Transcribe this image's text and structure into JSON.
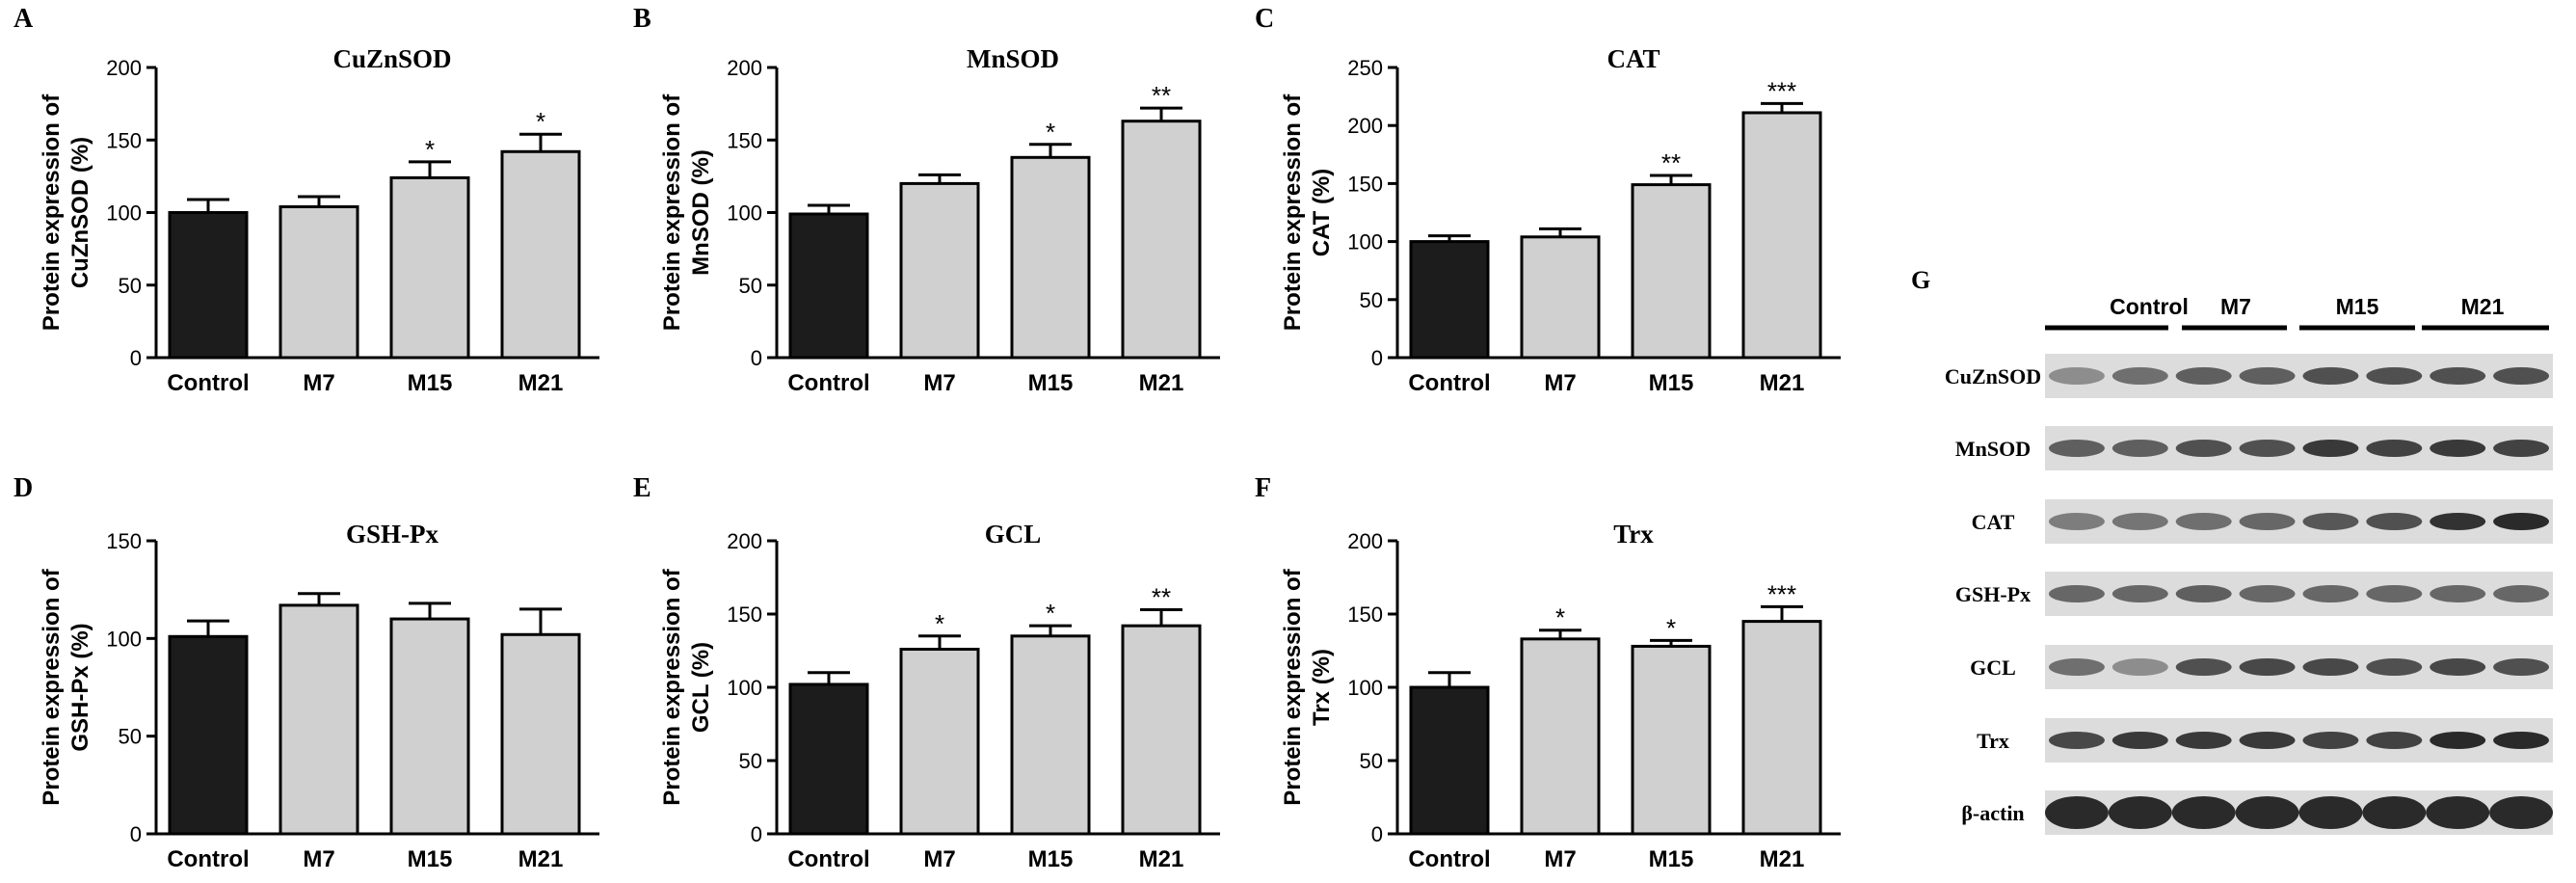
{
  "colors": {
    "control_bar": "#1c1c1c",
    "treated_bar": "#d0d0d0",
    "axis": "#000000",
    "blot_background": "#dcdcdc",
    "band": "#2a2a2a"
  },
  "chart_data": [
    {
      "panel": "A",
      "type": "bar",
      "title": "CuZnSOD",
      "ylabel": "Protein expression of CuZnSOD (%)",
      "ylabel_lines": [
        "Protein expression of",
        "CuZnSOD (%)"
      ],
      "categories": [
        "Control",
        "M7",
        "M15",
        "M21"
      ],
      "values": [
        100,
        104,
        124,
        142
      ],
      "errors": [
        9,
        7,
        11,
        12
      ],
      "significance": [
        "",
        "",
        "*",
        "*"
      ],
      "ylim": [
        0,
        200
      ],
      "yticks": [
        "0",
        "50",
        "100",
        "150",
        "200"
      ]
    },
    {
      "panel": "B",
      "type": "bar",
      "title": "MnSOD",
      "ylabel": "Protein expression of MnSOD (%)",
      "ylabel_lines": [
        "Protein expression of",
        "MnSOD (%)"
      ],
      "categories": [
        "Control",
        "M7",
        "M15",
        "M21"
      ],
      "values": [
        99,
        120,
        138,
        163
      ],
      "errors": [
        6,
        6,
        9,
        9
      ],
      "significance": [
        "",
        "",
        "*",
        "**"
      ],
      "ylim": [
        0,
        200
      ],
      "yticks": [
        "0",
        "50",
        "100",
        "150",
        "200"
      ]
    },
    {
      "panel": "C",
      "type": "bar",
      "title": "CAT",
      "ylabel": "Protein expression of CAT (%)",
      "ylabel_lines": [
        "Protein expression of",
        "CAT (%)"
      ],
      "categories": [
        "Control",
        "M7",
        "M15",
        "M21"
      ],
      "values": [
        100,
        104,
        149,
        211
      ],
      "errors": [
        5,
        7,
        8,
        8
      ],
      "significance": [
        "",
        "",
        "**",
        "***"
      ],
      "ylim": [
        0,
        250
      ],
      "yticks": [
        "0",
        "50",
        "100",
        "150",
        "200",
        "250"
      ]
    },
    {
      "panel": "D",
      "type": "bar",
      "title": "GSH-Px",
      "ylabel": "Protein expression of GSH-Px (%)",
      "ylabel_lines": [
        "Protein expression of",
        "GSH-Px (%)"
      ],
      "categories": [
        "Control",
        "M7",
        "M15",
        "M21"
      ],
      "values": [
        101,
        117,
        110,
        102
      ],
      "errors": [
        8,
        6,
        8,
        13
      ],
      "significance": [
        "",
        "",
        "",
        ""
      ],
      "ylim": [
        0,
        150
      ],
      "yticks": [
        "0",
        "50",
        "100",
        "150"
      ]
    },
    {
      "panel": "E",
      "type": "bar",
      "title": "GCL",
      "ylabel": "Protein expression of GCL (%)",
      "ylabel_lines": [
        "Protein expression of",
        "GCL (%)"
      ],
      "categories": [
        "Control",
        "M7",
        "M15",
        "M21"
      ],
      "values": [
        102,
        126,
        135,
        142
      ],
      "errors": [
        8,
        9,
        7,
        11
      ],
      "significance": [
        "",
        "*",
        "*",
        "**"
      ],
      "ylim": [
        0,
        200
      ],
      "yticks": [
        "0",
        "50",
        "100",
        "150",
        "200"
      ]
    },
    {
      "panel": "F",
      "type": "bar",
      "title": "Trx",
      "ylabel": "Protein expression of Trx (%)",
      "ylabel_lines": [
        "Protein expression of",
        "Trx (%)"
      ],
      "categories": [
        "Control",
        "M7",
        "M15",
        "M21"
      ],
      "values": [
        100,
        133,
        128,
        145
      ],
      "errors": [
        10,
        6,
        4,
        10
      ],
      "significance": [
        "",
        "*",
        "*",
        "***"
      ],
      "ylim": [
        0,
        200
      ],
      "yticks": [
        "0",
        "50",
        "100",
        "150",
        "200"
      ]
    }
  ],
  "western_blot": {
    "panel": "G",
    "groups": [
      "Control",
      "M7",
      "M15",
      "M21"
    ],
    "proteins": [
      "CuZnSOD",
      "MnSOD",
      "CAT",
      "GSH-Px",
      "GCL",
      "Trx",
      "β-actin"
    ],
    "band_intensity": [
      [
        0.35,
        0.55,
        0.65,
        0.65,
        0.75,
        0.75,
        0.75,
        0.75
      ],
      [
        0.65,
        0.65,
        0.75,
        0.75,
        0.9,
        0.85,
        0.9,
        0.85
      ],
      [
        0.45,
        0.5,
        0.55,
        0.6,
        0.7,
        0.75,
        0.95,
        1.0
      ],
      [
        0.6,
        0.6,
        0.65,
        0.6,
        0.6,
        0.6,
        0.6,
        0.6
      ],
      [
        0.55,
        0.35,
        0.75,
        0.8,
        0.8,
        0.75,
        0.8,
        0.75
      ],
      [
        0.8,
        0.9,
        0.9,
        0.9,
        0.85,
        0.85,
        1.0,
        1.0
      ],
      [
        1.0,
        1.0,
        1.0,
        1.0,
        1.0,
        1.0,
        1.0,
        1.0
      ]
    ]
  }
}
